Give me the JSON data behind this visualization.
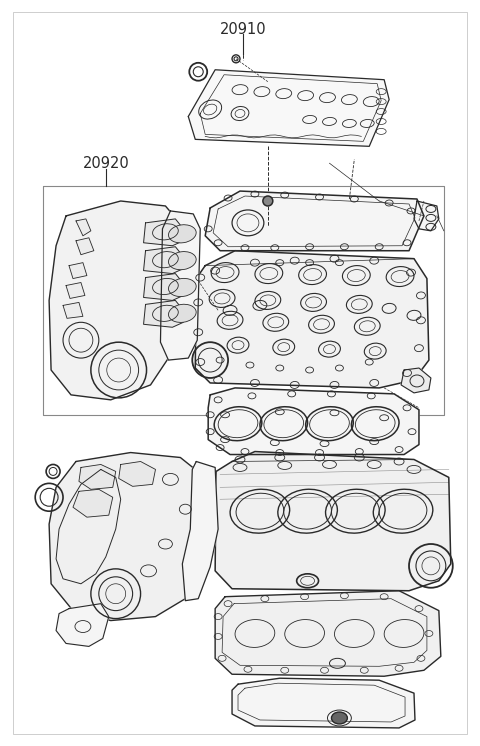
{
  "label_20910": "20910",
  "label_20920": "20920",
  "bg_color": "#ffffff",
  "line_color": "#2a2a2a",
  "fig_width": 4.8,
  "fig_height": 7.46,
  "dpi": 100
}
